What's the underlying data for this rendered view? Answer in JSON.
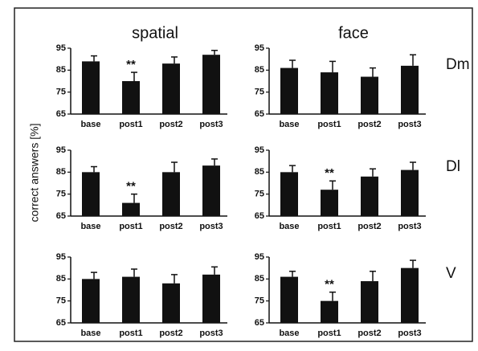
{
  "ylabel": "correct answers [%]",
  "chart_data": [
    {
      "type": "bar",
      "title": "spatial",
      "categories": [
        "base",
        "post1",
        "post2",
        "post3"
      ],
      "values": [
        89,
        80,
        88,
        92
      ],
      "errors": [
        2.5,
        4,
        3,
        2
      ],
      "color": "#111111",
      "ylim": [
        65,
        95
      ],
      "yticks": [
        65,
        75,
        85,
        95
      ],
      "annotations": [
        {
          "text": "**",
          "x": "post1"
        }
      ]
    },
    {
      "type": "bar",
      "title": "face",
      "row_label": "Dm",
      "categories": [
        "base",
        "post1",
        "post2",
        "post3"
      ],
      "values": [
        86,
        84,
        82,
        87
      ],
      "errors": [
        3.5,
        5,
        4,
        5
      ],
      "color": "#111111",
      "ylim": [
        65,
        95
      ],
      "yticks": [
        65,
        75,
        85,
        95
      ]
    },
    {
      "type": "bar",
      "categories": [
        "base",
        "post1",
        "post2",
        "post3"
      ],
      "values": [
        85,
        71,
        85,
        88
      ],
      "errors": [
        2.5,
        4,
        4.5,
        3
      ],
      "color": "#111111",
      "ylim": [
        65,
        95
      ],
      "yticks": [
        65,
        75,
        85,
        95
      ],
      "annotations": [
        {
          "text": "**",
          "x": "post1"
        }
      ]
    },
    {
      "type": "bar",
      "row_label": "Dl",
      "categories": [
        "base",
        "post1",
        "post2",
        "post3"
      ],
      "values": [
        85,
        77,
        83,
        86
      ],
      "errors": [
        3,
        4,
        3.5,
        3.5
      ],
      "color": "#111111",
      "ylim": [
        65,
        95
      ],
      "yticks": [
        65,
        75,
        85,
        95
      ],
      "annotations": [
        {
          "text": "**",
          "x": "post1"
        }
      ]
    },
    {
      "type": "bar",
      "categories": [
        "base",
        "post1",
        "post2",
        "post3"
      ],
      "values": [
        85,
        86,
        83,
        87
      ],
      "errors": [
        3,
        3.5,
        4,
        3.5
      ],
      "color": "#111111",
      "ylim": [
        65,
        95
      ],
      "yticks": [
        65,
        75,
        85,
        95
      ]
    },
    {
      "type": "bar",
      "row_label": "V",
      "categories": [
        "base",
        "post1",
        "post2",
        "post3"
      ],
      "values": [
        86,
        75,
        84,
        90
      ],
      "errors": [
        2.5,
        4,
        4.5,
        3.5
      ],
      "color": "#111111",
      "ylim": [
        65,
        95
      ],
      "yticks": [
        65,
        75,
        85,
        95
      ],
      "annotations": [
        {
          "text": "**",
          "x": "post1"
        }
      ]
    }
  ]
}
